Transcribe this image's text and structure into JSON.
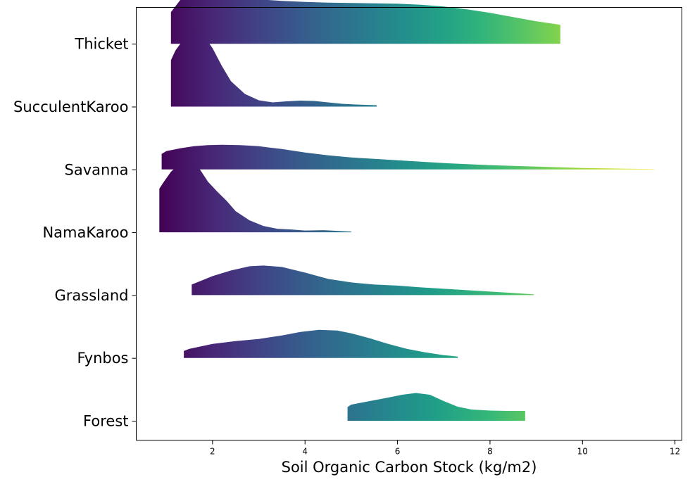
{
  "chart_data": {
    "type": "area",
    "chart_style": "ridgeline",
    "title": "",
    "xlabel": "Soil Organic Carbon Stock (kg/m2)",
    "ylabel": "",
    "xlim": [
      0.35,
      12.15
    ],
    "xticks": [
      2,
      4,
      6,
      8,
      10,
      12
    ],
    "grid": false,
    "legend": "none",
    "colormap": "viridis",
    "color_range": [
      0.85,
      11.55
    ],
    "colormap_stops": [
      "#440154",
      "#482878",
      "#3e4989",
      "#31688e",
      "#26828e",
      "#1f9e89",
      "#35b779",
      "#6ece58",
      "#b5de2b",
      "#fde725"
    ],
    "categories": [
      "Forest",
      "Fynbos",
      "Grassland",
      "NamaKaroo",
      "Savanna",
      "SucculentKaroo",
      "Thicket"
    ],
    "series": [
      {
        "name": "Forest",
        "x": [
          4.92,
          5.0,
          5.4,
          5.8,
          6.1,
          6.4,
          6.7,
          7.0,
          7.3,
          7.6,
          8.0,
          8.4,
          8.76
        ],
        "density": [
          0.195,
          0.23,
          0.28,
          0.33,
          0.37,
          0.395,
          0.37,
          0.28,
          0.2,
          0.16,
          0.145,
          0.14,
          0.14
        ]
      },
      {
        "name": "Fynbos",
        "x": [
          1.38,
          1.5,
          2.0,
          2.5,
          3.0,
          3.5,
          3.9,
          4.3,
          4.7,
          5.0,
          5.4,
          5.8,
          6.2,
          6.6,
          7.0,
          7.3
        ],
        "density": [
          0.1,
          0.13,
          0.2,
          0.24,
          0.27,
          0.32,
          0.37,
          0.4,
          0.39,
          0.35,
          0.28,
          0.2,
          0.13,
          0.08,
          0.04,
          0.02
        ]
      },
      {
        "name": "Grassland",
        "x": [
          1.55,
          1.7,
          2.0,
          2.4,
          2.8,
          3.1,
          3.5,
          4.0,
          4.5,
          5.0,
          5.5,
          6.0,
          6.5,
          7.0,
          7.5,
          8.0,
          8.5,
          8.95
        ],
        "density": [
          0.15,
          0.19,
          0.27,
          0.35,
          0.41,
          0.42,
          0.4,
          0.32,
          0.23,
          0.18,
          0.15,
          0.135,
          0.11,
          0.09,
          0.07,
          0.05,
          0.03,
          0.01
        ]
      },
      {
        "name": "NamaKaroo",
        "x": [
          0.85,
          0.95,
          1.1,
          1.3,
          1.5,
          1.7,
          1.9,
          2.1,
          2.3,
          2.5,
          2.8,
          3.1,
          3.4,
          3.7,
          4.0,
          4.4,
          4.7,
          5.0
        ],
        "density": [
          0.62,
          0.72,
          0.86,
          0.98,
          1.03,
          0.92,
          0.72,
          0.58,
          0.45,
          0.3,
          0.17,
          0.09,
          0.05,
          0.04,
          0.025,
          0.03,
          0.02,
          0.01
        ]
      },
      {
        "name": "Savanna",
        "x": [
          0.9,
          1.0,
          1.3,
          1.6,
          1.9,
          2.2,
          2.6,
          3.0,
          3.5,
          4.0,
          4.5,
          5.0,
          5.5,
          6.0,
          6.5,
          7.0,
          7.5,
          8.0,
          8.5,
          9.0,
          9.5,
          10.0,
          10.5,
          11.0,
          11.55
        ],
        "density": [
          0.22,
          0.26,
          0.3,
          0.33,
          0.345,
          0.35,
          0.345,
          0.33,
          0.29,
          0.24,
          0.2,
          0.17,
          0.15,
          0.13,
          0.11,
          0.09,
          0.075,
          0.06,
          0.05,
          0.04,
          0.03,
          0.02,
          0.015,
          0.01,
          0.005
        ]
      },
      {
        "name": "SucculentKaroo",
        "x": [
          1.1,
          1.2,
          1.4,
          1.6,
          1.8,
          2.0,
          2.2,
          2.4,
          2.7,
          3.0,
          3.3,
          3.6,
          3.9,
          4.2,
          4.5,
          4.8,
          5.1,
          5.55
        ],
        "density": [
          0.66,
          0.8,
          0.98,
          1.08,
          1.02,
          0.83,
          0.58,
          0.36,
          0.18,
          0.09,
          0.06,
          0.075,
          0.085,
          0.08,
          0.06,
          0.04,
          0.03,
          0.02
        ]
      },
      {
        "name": "Thicket",
        "x": [
          1.1,
          1.3,
          1.5,
          1.6,
          1.75,
          2.0,
          2.5,
          3.0,
          3.5,
          4.0,
          4.5,
          5.0,
          5.5,
          6.0,
          6.5,
          7.0,
          7.5,
          8.0,
          8.5,
          9.0,
          9.52
        ],
        "density": [
          0.45,
          0.62,
          0.8,
          0.82,
          0.79,
          0.72,
          0.66,
          0.63,
          0.61,
          0.595,
          0.585,
          0.58,
          0.575,
          0.57,
          0.555,
          0.53,
          0.49,
          0.44,
          0.38,
          0.32,
          0.27
        ],
        "note": "body starting at 1.75 sits at baseline offset Thicket; early bump overlaps SucculentKaroo row"
      }
    ]
  }
}
